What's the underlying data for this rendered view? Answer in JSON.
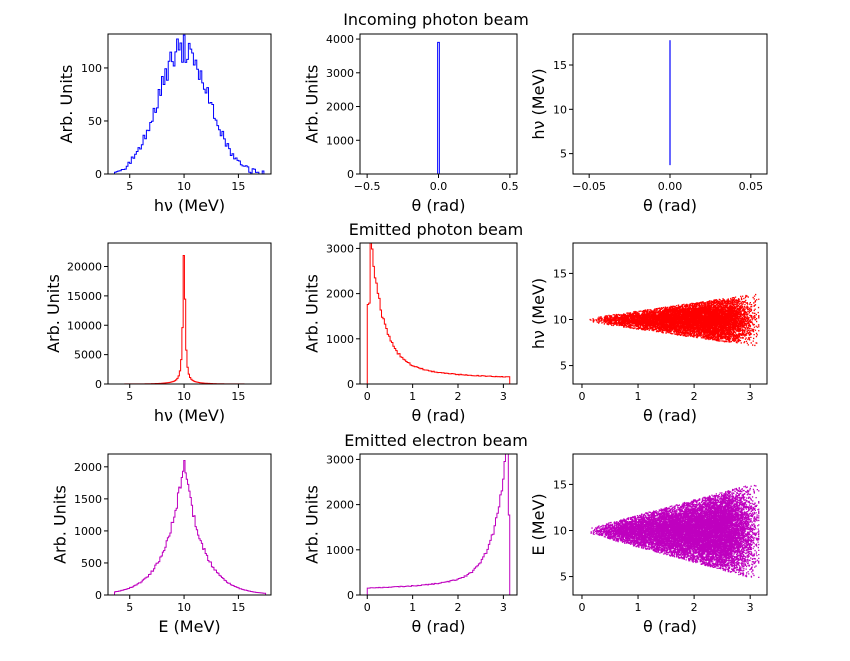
{
  "row_titles": [
    "Incoming photon beam",
    "Emitted photon beam",
    "Emitted electron beam"
  ],
  "chart_data": [
    {
      "type": "histogram",
      "row": 0,
      "col": 0,
      "color": "#0000ff",
      "xlabel": "hν (MeV)",
      "ylabel": "Arb. Units",
      "xlim": [
        3,
        18
      ],
      "ylim": [
        0,
        132
      ],
      "xticks": [
        5,
        10,
        15
      ],
      "yticks": [
        0,
        50,
        100
      ],
      "distribution": {
        "kind": "gaussian",
        "center": 10,
        "peak": 118,
        "width": 2.3,
        "x_range": [
          3.6,
          17.5
        ],
        "noise": 0.12,
        "bins": 90
      }
    },
    {
      "type": "histogram",
      "row": 0,
      "col": 1,
      "color": "#0000ff",
      "xlabel": "θ (rad)",
      "ylabel": "Arb. Units",
      "xlim": [
        -0.55,
        0.55
      ],
      "ylim": [
        0,
        4150
      ],
      "xticks": [
        -0.5,
        0,
        0.5
      ],
      "xtick_labels": [
        "−0.5",
        "0.0",
        "0.5"
      ],
      "yticks": [
        0,
        1000,
        2000,
        3000,
        4000
      ],
      "distribution": {
        "kind": "spike",
        "center": 0,
        "peak": 3900,
        "bin_width": 0.012
      }
    },
    {
      "type": "scatter",
      "row": 0,
      "col": 2,
      "color": "#0000ff",
      "xlabel": "θ (rad)",
      "ylabel": "hν (MeV)",
      "xlim": [
        -0.06,
        0.06
      ],
      "ylim": [
        2.7,
        18.5
      ],
      "xticks": [
        -0.05,
        0,
        0.05
      ],
      "xtick_labels": [
        "−0.05",
        "0.00",
        "0.05"
      ],
      "yticks": [
        5,
        10,
        15
      ],
      "points": {
        "kind": "vertical_line",
        "x": 0,
        "y_range": [
          3.7,
          17.8
        ]
      }
    },
    {
      "type": "histogram",
      "row": 1,
      "col": 0,
      "color": "#ff0000",
      "xlabel": "hν (MeV)",
      "ylabel": "Arb. Units",
      "xlim": [
        3,
        18
      ],
      "ylim": [
        0,
        24000
      ],
      "xticks": [
        5,
        10,
        15
      ],
      "yticks": [
        0,
        5000,
        10000,
        15000,
        20000
      ],
      "distribution": {
        "kind": "lorentzian",
        "center": 10,
        "peak": 22700,
        "width": 0.12,
        "x_range": [
          3.5,
          17.5
        ],
        "bins": 120
      }
    },
    {
      "type": "histogram",
      "row": 1,
      "col": 1,
      "color": "#ff0000",
      "xlabel": "θ (rad)",
      "ylabel": "Arb. Units",
      "xlim": [
        -0.16,
        3.3
      ],
      "ylim": [
        0,
        3120
      ],
      "xticks": [
        0,
        1,
        2,
        3
      ],
      "yticks": [
        0,
        1000,
        2000,
        3000
      ],
      "distribution": {
        "kind": "forward_peak",
        "x_range": [
          0,
          3.14
        ],
        "peak_x": 0.06,
        "peak": 2980,
        "tail": 110,
        "bins": 100
      }
    },
    {
      "type": "scatter",
      "row": 1,
      "col": 2,
      "color": "#ff0000",
      "xlabel": "θ (rad)",
      "ylabel": "hν (MeV)",
      "xlim": [
        -0.16,
        3.3
      ],
      "ylim": [
        3,
        18.3
      ],
      "xticks": [
        0,
        1,
        2,
        3
      ],
      "yticks": [
        5,
        10,
        15
      ],
      "points": {
        "kind": "cone",
        "center": 10,
        "spread_at_pi": 2.8,
        "x_start": 0.3,
        "count": 9000,
        "seed": 7
      }
    },
    {
      "type": "histogram",
      "row": 2,
      "col": 0,
      "color": "#bf00bf",
      "xlabel": "E (MeV)",
      "ylabel": "Arb. Units",
      "xlim": [
        3,
        18
      ],
      "ylim": [
        0,
        2200
      ],
      "xticks": [
        5,
        10,
        15
      ],
      "yticks": [
        0,
        500,
        1000,
        1500,
        2000
      ],
      "distribution": {
        "kind": "cusp",
        "center": 10,
        "peak": 2100,
        "width": 1.7,
        "x_range": [
          3.6,
          17.5
        ],
        "bins": 120
      }
    },
    {
      "type": "histogram",
      "row": 2,
      "col": 1,
      "color": "#bf00bf",
      "xlabel": "θ (rad)",
      "ylabel": "Arb. Units",
      "xlim": [
        -0.16,
        3.3
      ],
      "ylim": [
        0,
        3120
      ],
      "xticks": [
        0,
        1,
        2,
        3
      ],
      "yticks": [
        0,
        1000,
        2000,
        3000
      ],
      "distribution": {
        "kind": "backward_peak",
        "x_range": [
          0,
          3.14
        ],
        "peak_x": 3.08,
        "peak": 2930,
        "tail": 110,
        "bins": 100
      }
    },
    {
      "type": "scatter",
      "row": 2,
      "col": 2,
      "color": "#bf00bf",
      "xlabel": "θ (rad)",
      "ylabel": "E (MeV)",
      "xlim": [
        -0.16,
        3.3
      ],
      "ylim": [
        3,
        18.3
      ],
      "xticks": [
        0,
        1,
        2,
        3
      ],
      "yticks": [
        5,
        10,
        15
      ],
      "points": {
        "kind": "cone",
        "center": 10,
        "spread_at_pi": 5.2,
        "x_start": 0.2,
        "count": 14000,
        "seed": 11
      }
    }
  ]
}
